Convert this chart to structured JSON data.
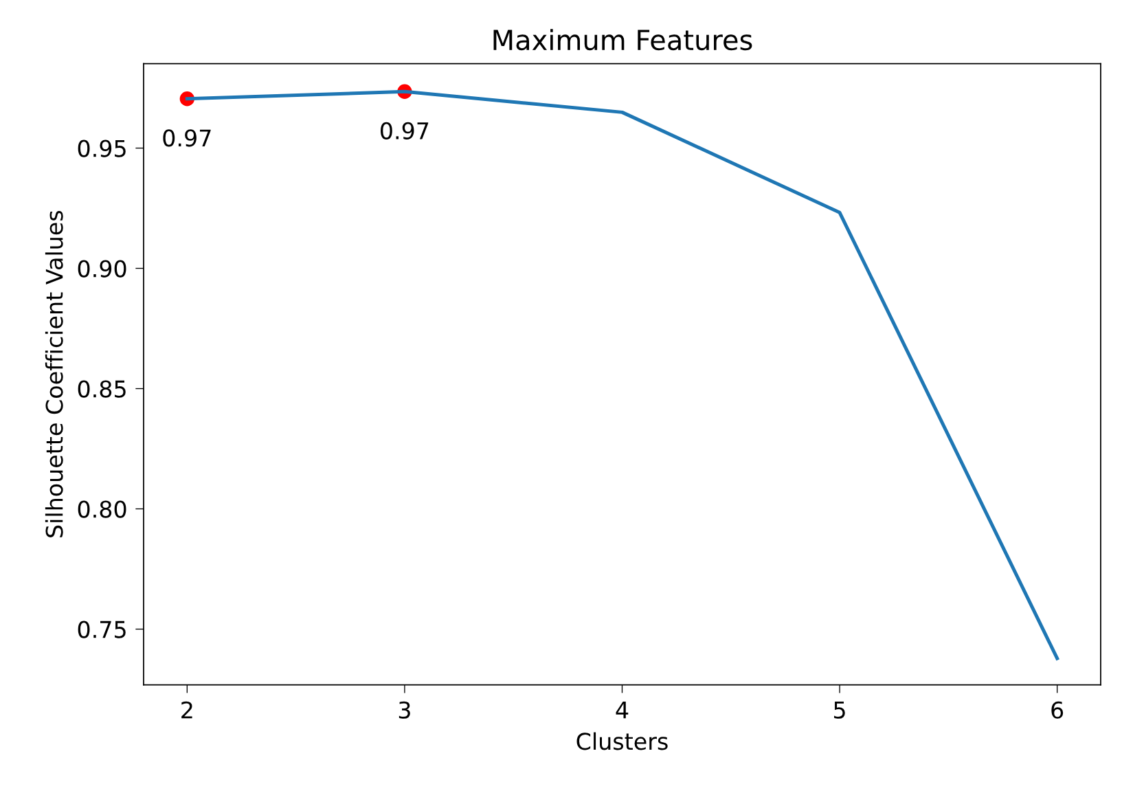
{
  "chart_data": {
    "type": "line",
    "title": "Maximum Features",
    "xlabel": "Clusters",
    "ylabel": "Silhouette Coefficient Values",
    "x": [
      2,
      3,
      4,
      5,
      6
    ],
    "series": [
      {
        "color": "#1f77b4",
        "values": [
          0.9705,
          0.9735,
          0.9649,
          0.9232,
          0.7378
        ]
      },
      {
        "type": "scatter",
        "color": "#ff0000",
        "x": [
          2,
          3
        ],
        "values": [
          0.9705,
          0.9735
        ],
        "value_labels": [
          "0.97",
          "0.97"
        ]
      }
    ],
    "xlim": [
      1.8,
      6.2
    ],
    "xticks": [
      2,
      3,
      4,
      5,
      6
    ],
    "ylim": [
      0.7268,
      0.9851
    ],
    "yticks": [
      0.75,
      {
        "value": 0.8,
        "label": "0.80"
      },
      0.85,
      {
        "value": 0.9,
        "label": "0.90"
      },
      0.95
    ],
    "grid": false,
    "legend": false
  }
}
